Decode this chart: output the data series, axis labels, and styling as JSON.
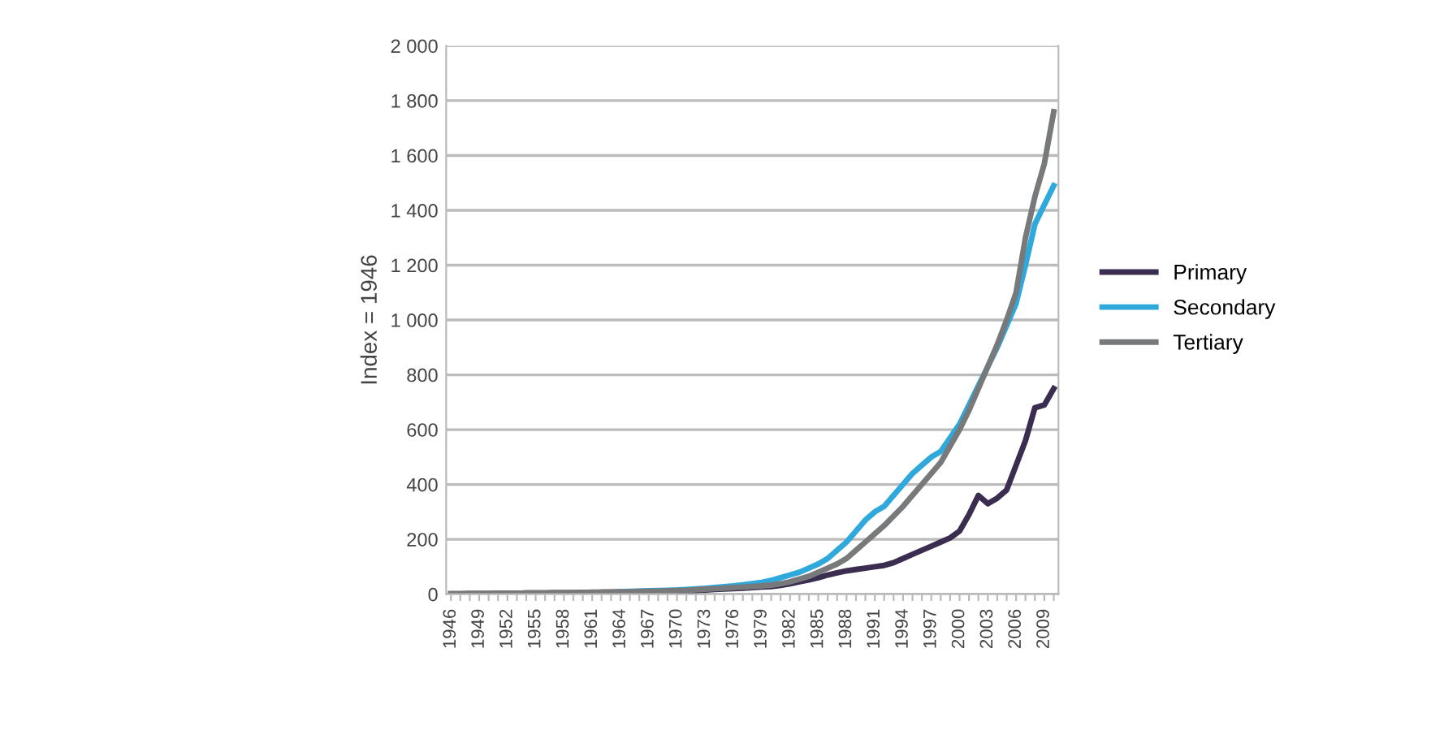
{
  "chart_data": {
    "type": "line",
    "ylabel": "Index = 1946",
    "categories": [
      "1946",
      null,
      null,
      "1949",
      null,
      null,
      "1952",
      null,
      null,
      "1955",
      null,
      null,
      "1958",
      null,
      null,
      "1961",
      null,
      null,
      "1964",
      null,
      null,
      "1967",
      null,
      null,
      "1970",
      null,
      null,
      "1973",
      null,
      null,
      "1976",
      null,
      null,
      "1979",
      null,
      null,
      "1982",
      null,
      null,
      "1985",
      null,
      null,
      "1988",
      null,
      null,
      "1991",
      null,
      null,
      "1994",
      null,
      null,
      "1997",
      null,
      null,
      "2000",
      null,
      null,
      "2003",
      null,
      null,
      "2006",
      null,
      null,
      "2009",
      null
    ],
    "series": [
      {
        "name": "Primary",
        "color": "#3a2d4f",
        "values": [
          1,
          1,
          2,
          2,
          2,
          3,
          3,
          3,
          4,
          4,
          4,
          5,
          5,
          5,
          6,
          6,
          7,
          7,
          8,
          8,
          9,
          9,
          10,
          10,
          11,
          12,
          13,
          15,
          17,
          19,
          20,
          22,
          24,
          26,
          28,
          32,
          38,
          45,
          52,
          60,
          70,
          78,
          85,
          90,
          95,
          100,
          105,
          115,
          130,
          145,
          160,
          175,
          190,
          205,
          230,
          290,
          360,
          330,
          350,
          380,
          470,
          560,
          680,
          690,
          750
        ]
      },
      {
        "name": "Secondary",
        "color": "#2fa8dc",
        "values": [
          null,
          null,
          null,
          null,
          null,
          null,
          null,
          null,
          null,
          null,
          null,
          null,
          null,
          null,
          null,
          null,
          null,
          null,
          9,
          10,
          11,
          12,
          13,
          14,
          15,
          17,
          19,
          21,
          24,
          27,
          30,
          34,
          38,
          43,
          50,
          60,
          70,
          80,
          95,
          110,
          130,
          160,
          190,
          230,
          270,
          300,
          320,
          360,
          400,
          440,
          470,
          500,
          520,
          570,
          620,
          690,
          760,
          830,
          900,
          980,
          1060,
          1200,
          1350,
          1420,
          1490
        ]
      },
      {
        "name": "Tertiary",
        "color": "#77797b",
        "values": [
          1,
          1,
          2,
          2,
          2,
          3,
          3,
          3,
          4,
          4,
          4,
          5,
          5,
          6,
          6,
          7,
          7,
          8,
          8,
          9,
          10,
          10,
          11,
          12,
          13,
          14,
          16,
          18,
          20,
          22,
          24,
          26,
          28,
          30,
          33,
          38,
          45,
          55,
          65,
          80,
          95,
          110,
          130,
          160,
          190,
          220,
          250,
          285,
          320,
          360,
          400,
          440,
          480,
          540,
          600,
          670,
          750,
          830,
          910,
          1000,
          1100,
          1300,
          1450,
          1570,
          1760
        ]
      }
    ],
    "ylim": [
      0,
      2000
    ],
    "yticks": [
      0,
      200,
      400,
      600,
      800,
      {
        "value": 1000,
        "label": "1 000"
      },
      {
        "value": 1200,
        "label": "1 200"
      },
      {
        "value": 1400,
        "label": "1 400"
      },
      {
        "value": 1600,
        "label": "1 600"
      },
      {
        "value": 1800,
        "label": "1 800"
      },
      {
        "value": 2000,
        "label": "2 000"
      }
    ],
    "grid": "y",
    "legend": "right",
    "marker": "none",
    "line_style": "solid"
  }
}
